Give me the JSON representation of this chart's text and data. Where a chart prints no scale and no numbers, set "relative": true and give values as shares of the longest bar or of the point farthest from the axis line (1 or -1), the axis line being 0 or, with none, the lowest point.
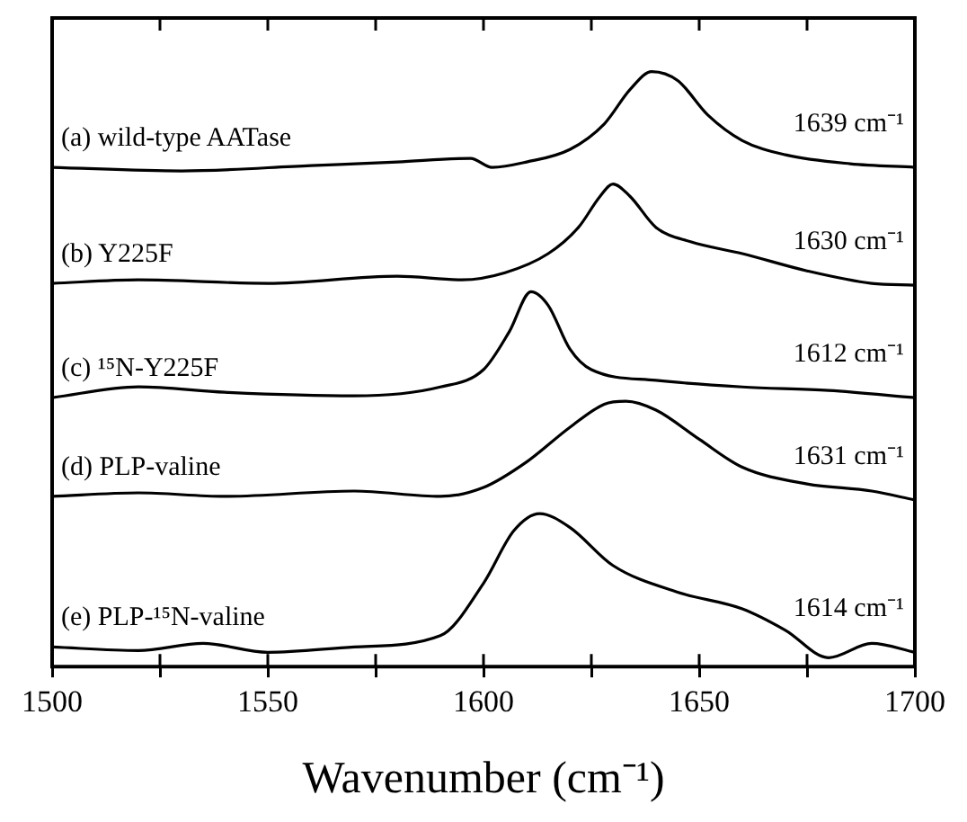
{
  "chart_data": {
    "type": "line",
    "relative": true,
    "xlabel": "Wavenumber (cm⁻¹)",
    "xlim": [
      1500,
      1700
    ],
    "xticks": [
      1500,
      {
        "value": 1525,
        "label": null
      },
      1550,
      {
        "value": 1575,
        "label": null
      },
      1600,
      {
        "value": 1625,
        "label": null
      },
      1650,
      {
        "value": 1675,
        "label": null
      },
      1700
    ],
    "tick_labels": "x",
    "grid": false,
    "legend": false,
    "marker": "none",
    "line_style": "solid",
    "series": [
      {
        "name": "(a) wild-type AATase",
        "color": "#000000",
        "x": [
          1500,
          1530,
          1560,
          1580,
          1597,
          1602,
          1610,
          1620,
          1628,
          1634,
          1639,
          1645,
          1652,
          1660,
          1670,
          1685,
          1700
        ],
        "values": [
          0.839,
          0.833,
          0.842,
          0.848,
          0.854,
          0.839,
          0.848,
          0.869,
          0.912,
          0.97,
          1,
          0.985,
          0.927,
          0.884,
          0.86,
          0.845,
          0.839
        ]
      },
      {
        "name": "(b) Y225F",
        "color": "#000000",
        "x": [
          1500,
          1520,
          1550,
          1580,
          1595,
          1605,
          1615,
          1622,
          1627,
          1630,
          1634,
          1640,
          1648,
          1660,
          1675,
          1690,
          1700
        ],
        "values": [
          0.644,
          0.65,
          0.644,
          0.656,
          0.65,
          0.662,
          0.694,
          0.738,
          0.79,
          0.811,
          0.79,
          0.738,
          0.714,
          0.694,
          0.665,
          0.644,
          0.641
        ]
      },
      {
        "name": "(c) ¹⁵N-Y225F",
        "color": "#000000",
        "x": [
          1500,
          1520,
          1540,
          1570,
          1590,
          1600,
          1606,
          1611,
          1615,
          1620,
          1625,
          1640,
          1660,
          1680,
          1700
        ],
        "values": [
          0.452,
          0.47,
          0.461,
          0.455,
          0.47,
          0.499,
          0.563,
          0.63,
          0.607,
          0.534,
          0.499,
          0.481,
          0.47,
          0.464,
          0.452
        ]
      },
      {
        "name": "(d) PLP-valine",
        "color": "#000000",
        "x": [
          1500,
          1520,
          1540,
          1570,
          1590,
          1600,
          1610,
          1620,
          1628,
          1633,
          1640,
          1650,
          1660,
          1675,
          1690,
          1700
        ],
        "values": [
          0.286,
          0.292,
          0.286,
          0.295,
          0.286,
          0.301,
          0.344,
          0.402,
          0.441,
          0.446,
          0.431,
          0.382,
          0.335,
          0.307,
          0.295,
          0.28
        ]
      },
      {
        "name": "(e) PLP-¹⁵N-valine",
        "color": "#000000",
        "x": [
          1500,
          1520,
          1535,
          1550,
          1570,
          1590,
          1600,
          1607,
          1613,
          1620,
          1630,
          1645,
          1660,
          1670,
          1680,
          1690,
          1700
        ],
        "values": [
          0.033,
          0.027,
          0.039,
          0.024,
          0.033,
          0.052,
          0.14,
          0.228,
          0.257,
          0.234,
          0.17,
          0.125,
          0.097,
          0.061,
          0.015,
          0.039,
          0.024
        ]
      }
    ],
    "annotations": [
      "1639 cm⁻¹",
      "1630 cm⁻¹",
      "1612 cm⁻¹",
      "1631 cm⁻¹",
      "1614 cm⁻¹"
    ]
  }
}
